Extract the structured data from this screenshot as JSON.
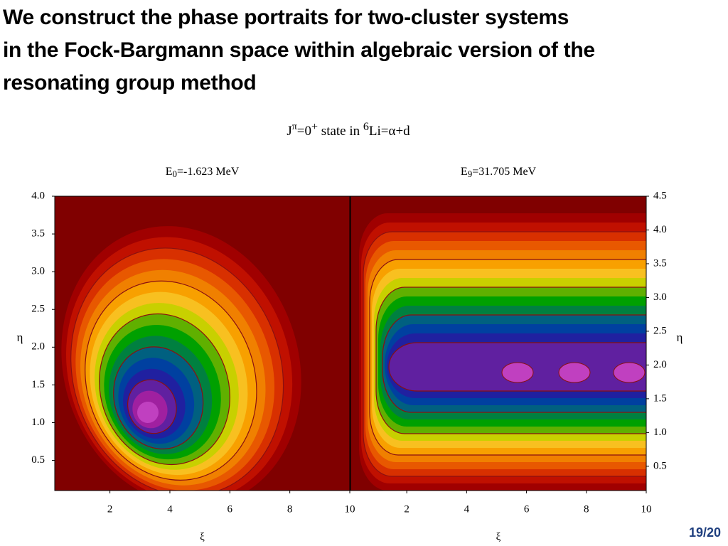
{
  "header": {
    "title": [
      "We construct the phase portraits for two-cluster systems",
      "in the Fock-Bargmann space within algebraic version of the",
      "resonating group method"
    ]
  },
  "figure_title": [
    "J",
    "π",
    "=0",
    "+",
    " state in ",
    "6",
    "Li=α+d"
  ],
  "page_number": "19/20",
  "chart_data": [
    {
      "type": "contour",
      "title": [
        "E",
        "0",
        "=-1.623 MeV"
      ],
      "x_label": "ξ",
      "y_label": "η",
      "yaxis_side": "left",
      "xlim": [
        0.16,
        10
      ],
      "xticks": [
        2,
        4,
        6,
        8,
        10
      ],
      "ylim": [
        0.1,
        4
      ],
      "yticks": [
        0.5,
        {
          "value": 1,
          "label": "1.0"
        },
        1.5,
        {
          "value": 2,
          "label": "2.0"
        },
        2.5,
        {
          "value": 3,
          "label": "3.0"
        },
        3.5,
        {
          "value": 4,
          "label": "4.0"
        }
      ]
    },
    {
      "type": "contour",
      "title": [
        "E",
        "9",
        "=31.705 MeV"
      ],
      "x_label": "ξ",
      "y_label": "η",
      "yaxis_side": "right",
      "xlim": [
        0.12,
        10
      ],
      "xticks": [
        2,
        4,
        6,
        8,
        10
      ],
      "ylim": [
        0.14,
        4.5
      ],
      "yticks": [
        0.5,
        {
          "value": 1,
          "label": "1.0"
        },
        1.5,
        {
          "value": 2,
          "label": "2.0"
        },
        2.5,
        {
          "value": 3,
          "label": "3.0"
        },
        3.5,
        {
          "value": 4,
          "label": "4.0"
        },
        4.5
      ]
    }
  ]
}
